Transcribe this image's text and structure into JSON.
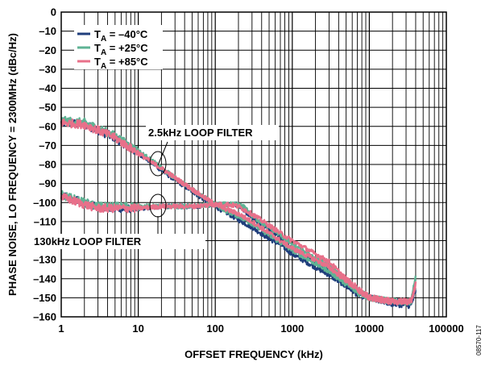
{
  "chart_data": {
    "type": "line",
    "xscale": "log",
    "xlim": [
      1,
      100000
    ],
    "ylim": [
      -160,
      0
    ],
    "grid": true,
    "legend_position": "top-left",
    "xlabel": "OFFSET FREQUENCY (kHz)",
    "ylabel": "PHASE NOISE, LO FREQUENCY = 2300MHz (dBc/Hz)",
    "x_ticks": [
      "1",
      "10",
      "100",
      "1000",
      "10000",
      "100000"
    ],
    "y_ticks": [
      "0",
      "–10",
      "–20",
      "–30",
      "–40",
      "–50",
      "–60",
      "–70",
      "–80",
      "–90",
      "–100",
      "–110",
      "–120",
      "–130",
      "–140",
      "–150",
      "–160"
    ],
    "legend": [
      {
        "base": "T",
        "sub": "A",
        "rest": " = –40°C",
        "color": "#1f3e7c"
      },
      {
        "base": "T",
        "sub": "A",
        "rest": " = +25°C",
        "color": "#5fb394"
      },
      {
        "base": "T",
        "sub": "A",
        "rest": " = +85°C",
        "color": "#e8708a"
      }
    ],
    "annotations": [
      "2.5kHz LOOP FILTER",
      "130kHz LOOP FILTER"
    ],
    "figure_id": "08570-117",
    "series": [
      {
        "filter": "2.5kHz",
        "temp": "-40C",
        "color": "#1f3e7c",
        "points": [
          [
            1,
            -58
          ],
          [
            2,
            -59
          ],
          [
            3,
            -62
          ],
          [
            5,
            -66
          ],
          [
            7,
            -70
          ],
          [
            10,
            -74
          ],
          [
            15,
            -79
          ],
          [
            20,
            -83
          ],
          [
            30,
            -88
          ],
          [
            50,
            -94
          ],
          [
            70,
            -98
          ],
          [
            100,
            -102
          ],
          [
            150,
            -106
          ],
          [
            200,
            -109
          ],
          [
            300,
            -113
          ],
          [
            500,
            -119
          ],
          [
            700,
            -122
          ],
          [
            1000,
            -127
          ],
          [
            2000,
            -134
          ],
          [
            3000,
            -138
          ],
          [
            5000,
            -144
          ],
          [
            7000,
            -148
          ],
          [
            10000,
            -150
          ],
          [
            20000,
            -152
          ],
          [
            35000,
            -153
          ],
          [
            40000,
            -145
          ]
        ]
      },
      {
        "filter": "2.5kHz",
        "temp": "+25C",
        "color": "#5fb394",
        "points": [
          [
            1,
            -57
          ],
          [
            2,
            -58
          ],
          [
            3,
            -61
          ],
          [
            5,
            -65
          ],
          [
            7,
            -69
          ],
          [
            10,
            -73
          ],
          [
            15,
            -78
          ],
          [
            20,
            -82
          ],
          [
            30,
            -87
          ],
          [
            50,
            -93
          ],
          [
            70,
            -97
          ],
          [
            100,
            -101
          ],
          [
            150,
            -105
          ],
          [
            200,
            -107
          ],
          [
            300,
            -111
          ],
          [
            500,
            -117
          ],
          [
            700,
            -121
          ],
          [
            1000,
            -125
          ],
          [
            2000,
            -132
          ],
          [
            3000,
            -136
          ],
          [
            5000,
            -143
          ],
          [
            7000,
            -147
          ],
          [
            10000,
            -150
          ],
          [
            20000,
            -152
          ],
          [
            35000,
            -152
          ],
          [
            40000,
            -140
          ]
        ]
      },
      {
        "filter": "2.5kHz",
        "temp": "+85C",
        "color": "#e8708a",
        "points": [
          [
            1,
            -58
          ],
          [
            2,
            -59
          ],
          [
            3,
            -62
          ],
          [
            5,
            -66
          ],
          [
            7,
            -70
          ],
          [
            10,
            -74
          ],
          [
            15,
            -79
          ],
          [
            20,
            -82
          ],
          [
            30,
            -87
          ],
          [
            50,
            -93
          ],
          [
            70,
            -97
          ],
          [
            100,
            -101
          ],
          [
            150,
            -104
          ],
          [
            200,
            -106
          ],
          [
            300,
            -110
          ],
          [
            500,
            -116
          ],
          [
            700,
            -120
          ],
          [
            1000,
            -124
          ],
          [
            2000,
            -130
          ],
          [
            3000,
            -134
          ],
          [
            5000,
            -141
          ],
          [
            7000,
            -146
          ],
          [
            10000,
            -150
          ],
          [
            20000,
            -152
          ],
          [
            35000,
            -152
          ],
          [
            40000,
            -142
          ]
        ]
      },
      {
        "filter": "130kHz",
        "temp": "-40C",
        "color": "#1f3e7c",
        "points": [
          [
            1,
            -96
          ],
          [
            2,
            -100
          ],
          [
            3,
            -102
          ],
          [
            5,
            -103
          ],
          [
            10,
            -103
          ],
          [
            20,
            -102
          ],
          [
            50,
            -102
          ],
          [
            100,
            -101
          ],
          [
            150,
            -101
          ],
          [
            200,
            -101
          ],
          [
            250,
            -105
          ],
          [
            300,
            -108
          ],
          [
            500,
            -114
          ],
          [
            700,
            -118
          ],
          [
            1000,
            -124
          ],
          [
            2000,
            -131
          ],
          [
            3000,
            -135
          ],
          [
            5000,
            -142
          ],
          [
            7000,
            -146
          ],
          [
            10000,
            -150
          ],
          [
            20000,
            -153
          ],
          [
            35000,
            -154
          ],
          [
            40000,
            -146
          ]
        ]
      },
      {
        "filter": "130kHz",
        "temp": "+25C",
        "color": "#5fb394",
        "points": [
          [
            1,
            -96
          ],
          [
            2,
            -100
          ],
          [
            3,
            -102
          ],
          [
            5,
            -102
          ],
          [
            10,
            -102
          ],
          [
            20,
            -102
          ],
          [
            50,
            -102
          ],
          [
            100,
            -101
          ],
          [
            150,
            -101
          ],
          [
            200,
            -101
          ],
          [
            250,
            -103
          ],
          [
            300,
            -107
          ],
          [
            500,
            -113
          ],
          [
            700,
            -117
          ],
          [
            1000,
            -122
          ],
          [
            2000,
            -129
          ],
          [
            3000,
            -133
          ],
          [
            5000,
            -141
          ],
          [
            7000,
            -146
          ],
          [
            10000,
            -150
          ],
          [
            20000,
            -152
          ],
          [
            35000,
            -152
          ],
          [
            40000,
            -139
          ]
        ]
      },
      {
        "filter": "130kHz",
        "temp": "+85C",
        "color": "#e8708a",
        "points": [
          [
            1,
            -97
          ],
          [
            2,
            -101
          ],
          [
            3,
            -103
          ],
          [
            5,
            -103
          ],
          [
            10,
            -103
          ],
          [
            20,
            -102
          ],
          [
            50,
            -102
          ],
          [
            100,
            -101
          ],
          [
            150,
            -101
          ],
          [
            200,
            -102
          ],
          [
            300,
            -106
          ],
          [
            500,
            -112
          ],
          [
            700,
            -116
          ],
          [
            1000,
            -120
          ],
          [
            2000,
            -127
          ],
          [
            3000,
            -131
          ],
          [
            5000,
            -140
          ],
          [
            7000,
            -145
          ],
          [
            10000,
            -150
          ],
          [
            20000,
            -152
          ],
          [
            35000,
            -152
          ],
          [
            40000,
            -143
          ]
        ]
      }
    ]
  }
}
